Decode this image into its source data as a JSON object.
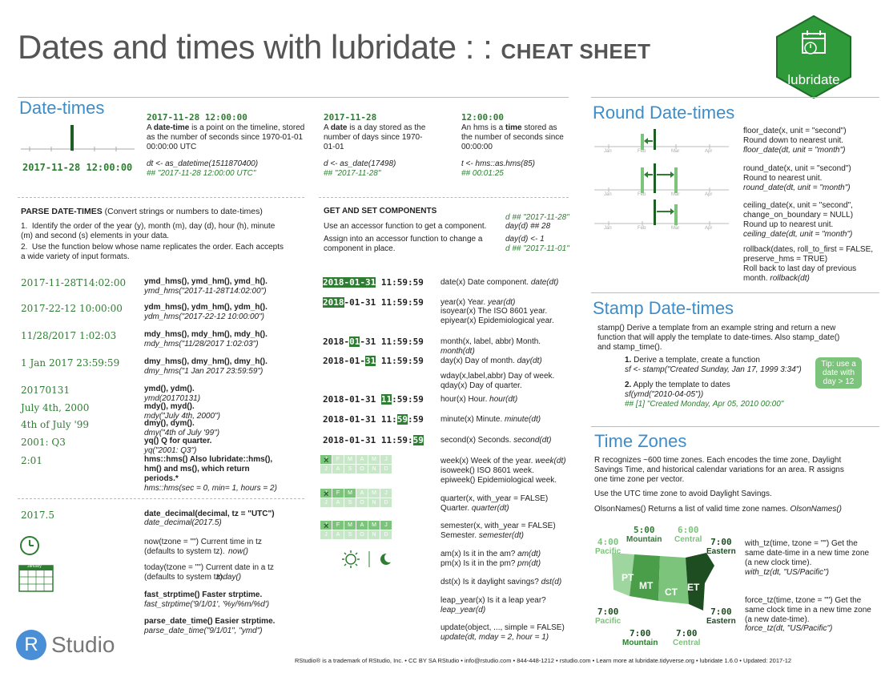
{
  "header": {
    "title_main": "Dates and times with lubridate : : ",
    "title_bold": "CHEAT SHEET",
    "logo_text": "lubridate"
  },
  "datetimes": {
    "title": "Date-times",
    "ex_datetime": "2017-11-28 12:00:00",
    "ex_datetime_big": "2017-11-28 12:00:00",
    "datetime_desc_pre": "A ",
    "datetime_desc_bold": "date-time",
    "datetime_desc_post": " is a point on the timeline, stored as the number of seconds since 1970-01-01 00:00:00 UTC",
    "datetime_code": "dt <- as_datetime(1511870400)",
    "datetime_out": "## \"2017-11-28 12:00:00 UTC\"",
    "ex_date": "2017-11-28",
    "date_desc_pre": "A ",
    "date_desc_bold": "date",
    "date_desc_post": " is a day stored as the number of days since 1970-01-01",
    "date_code": "d <- as_date(17498)",
    "date_out": "## \"2017-11-28\"",
    "ex_time": "12:00:00",
    "time_desc_pre": "An hms is a ",
    "time_desc_bold": "time",
    "time_desc_post": " stored as the number of seconds since 00:00:00",
    "time_code": "t <- hms::as.hms(85)",
    "time_out": "## 00:01:25"
  },
  "parse": {
    "heading_bold": "PARSE DATE-TIMES",
    "heading_rest": " (Convert strings or numbers to date-times)",
    "step1": "Identify the order of the year (y), month (m), day (d), hour (h), minute (m) and second (s) elements in your data.",
    "step2": "Use the function below whose name replicates the order. Each accepts a wide variety of input formats.",
    "rows": [
      {
        "ex": "2017-11-28T14:02:00",
        "fn": "ymd_hms(), ymd_hm(), ymd_h().",
        "code": "ymd_hms(\"2017-11-28T14:02:00\")"
      },
      {
        "ex": "2017-22-12 10:00:00",
        "fn": "ydm_hms(), ydm_hm(), ydm_h().",
        "code": "ydm_hms(\"2017-22-12 10:00:00\")"
      },
      {
        "ex": "11/28/2017 1:02:03",
        "fn": "mdy_hms(), mdy_hm(), mdy_h().",
        "code": "mdy_hms(\"11/28/2017 1:02:03\")"
      },
      {
        "ex": "1 Jan 2017 23:59:59",
        "fn": "dmy_hms(), dmy_hm(), dmy_h().",
        "code": "dmy_hms(\"1 Jan 2017 23:59:59\")"
      },
      {
        "ex": "20170131",
        "fn": "ymd(), ydm().",
        "code": "ymd(20170131)"
      },
      {
        "ex": "July 4th, 2000",
        "fn": "mdy(), myd().",
        "code": "mdy(\"July 4th, 2000\")"
      },
      {
        "ex": "4th of July '99",
        "fn": "dmy(), dym().",
        "code": "dmy(\"4th of July '99\")"
      },
      {
        "ex": "2001: Q3",
        "fn": "yq() Q for quarter.",
        "code": "yq(\"2001: Q3\")"
      },
      {
        "ex": "2:01",
        "fn": "hms::hms() Also lubridate::hms(), hm() and ms(), which return periods.*",
        "code": "hms::hms(sec = 0, min= 1, hours = 2)"
      }
    ],
    "decimal_ex": "2017.5",
    "decimal_fn": "date_decimal(decimal, tz = \"UTC\")",
    "decimal_code": "date_decimal(2017.5)",
    "now_fn": "now(tzone = \"\") Current time in tz (defaults to system tz).",
    "now_code": "now()",
    "today_fn": "today(tzone = \"\") Current date in a tz (defaults to system tz).",
    "today_code": "today()",
    "fast_fn": "fast_strptime() Faster strptime.",
    "fast_code": "fast_strptime('9/1/01', '%y/%m/%d')",
    "parse_fn": "parse_date_time() Easier strptime.",
    "parse_code": "parse_date_time(\"9/1/01\", \"ymd\")",
    "cal_label": "January"
  },
  "getset": {
    "heading": "GET AND SET COMPONENTS",
    "code1": "d ## \"2017-11-28\"",
    "code2": "day(d) ## 28",
    "code3": "day(d) <- 1",
    "code4": "d ## \"2017-11-01\"",
    "text1": "Use an accessor function to get a component.",
    "text2": "Assign into an accessor function to change a component in place.",
    "rows": [
      {
        "pre": "",
        "hl": "2018-01-31",
        "post": " 11:59:59",
        "fn": "date(x) Date component.",
        "code": "date(dt)"
      },
      {
        "pre": "",
        "hl": "2018",
        "post": "-01-31 11:59:59",
        "fn": "year(x) Year.",
        "code": "year(dt)"
      },
      {
        "pre": "2018-",
        "hl": "01",
        "post": "-31 11:59:59",
        "fn": "month(x, label, abbr) Month.",
        "code": "month(dt)"
      },
      {
        "pre": "2018-01-",
        "hl": "31",
        "post": " 11:59:59",
        "fn": "day(x) Day of month.",
        "code": "day(dt)"
      },
      {
        "pre": "2018-01-31 ",
        "hl": "11",
        "post": ":59:59",
        "fn": "hour(x) Hour.",
        "code": "hour(dt)"
      },
      {
        "pre": "2018-01-31 11:",
        "hl": "59",
        "post": ":59",
        "fn": "minute(x) Minute.",
        "code": "minute(dt)"
      },
      {
        "pre": "2018-01-31 11:59:",
        "hl": "59",
        "post": "",
        "fn": "second(x) Seconds.",
        "code": "second(dt)"
      }
    ],
    "isoyear": "isoyear(x) The ISO 8601 year.",
    "epiyear": "epiyear(x) Epidemiological year.",
    "wday": "wday(x,label,abbr) Day of week.",
    "qday": "qday(x) Day of quarter.",
    "week": "week(x) Week of the year.",
    "week_code": "week(dt)",
    "isoweek": "isoweek() ISO 8601 week.",
    "epiweek": "epiweek() Epidemiological week.",
    "quarter": "quarter(x, with_year = FALSE)",
    "quarter2": "Quarter.",
    "quarter_code": "quarter(dt)",
    "semester": "semester(x, with_year = FALSE)",
    "semester2": "Semester.",
    "semester_code": "semester(dt)",
    "am": "am(x) Is it in the am?",
    "am_code": "am(dt)",
    "pm": "pm(x) Is it in the pm?",
    "pm_code": "pm(dt)",
    "dst": "dst(x) Is it daylight savings?",
    "dst_code": "dst(d)",
    "leap": "leap_year(x) Is it a leap year?",
    "leap_code": "leap_year(d)",
    "update": "update(object, ..., simple = FALSE)",
    "update_code": "update(dt, mday = 2, hour = 1)",
    "months_row1": [
      "J",
      "F",
      "M",
      "A",
      "M",
      "J"
    ],
    "months_row2": [
      "J",
      "A",
      "S",
      "O",
      "N",
      "D"
    ]
  },
  "round": {
    "title": "Round Date-times",
    "ticks": [
      "Jan",
      "Feb",
      "Mar",
      "Apr"
    ],
    "floor_fn": "floor_date(x, unit = \"second\")",
    "floor_desc": "Round down to nearest unit.",
    "floor_code": "floor_date(dt, unit = \"month\")",
    "round_fn": "round_date(x, unit = \"second\")",
    "round_desc": "Round to nearest unit.",
    "round_code": "round_date(dt, unit = \"month\")",
    "ceil_fn": "ceiling_date(x, unit = \"second\", change_on_boundary = NULL)",
    "ceil_desc": "Round up to nearest unit.",
    "ceil_code": "ceiling_date(dt, unit = \"month\")",
    "rollback_fn": "rollback(dates, roll_to_first = FALSE, preserve_hms = TRUE)",
    "rollback_desc": "Roll back to last day of previous month.",
    "rollback_code": "rollback(dt)"
  },
  "stamp": {
    "title": "Stamp Date-times",
    "desc": "stamp() Derive a template from an example string and return a new function that will apply the template to date-times. Also stamp_date() and stamp_time().",
    "step1": "Derive a template, create a function",
    "step1_code": "sf <- stamp(\"Created Sunday, Jan 17, 1999 3:34\")",
    "step2": "Apply the template to dates",
    "step2_code": "sf(ymd(\"2010-04-05\"))",
    "step2_out": "## [1] \"Created Monday, Apr 05, 2010 00:00\"",
    "tip": "Tip: use a date with day > 12"
  },
  "tz": {
    "title": "Time Zones",
    "desc": "R recognizes ~600 time zones. Each encodes the time zone, Daylight Savings Time, and historical calendar variations for an area. R assigns one time zone per vector.",
    "utc": "Use the UTC time zone to avoid Daylight Savings.",
    "olson_fn": "OlsonNames() Returns a list of valid time zone names.",
    "olson_code": "OlsonNames()",
    "with_tz_fn": "with_tz(time, tzone = \"\") Get the same date-time in a new time zone (a new clock time).",
    "with_tz_code": "with_tz(dt, \"US/Pacific\")",
    "force_tz_fn": "force_tz(time, tzone = \"\") Get the same clock time in a new time zone (a new date-time).",
    "force_tz_code": "force_tz(dt, \"US/Pacific\")",
    "top_labels": [
      {
        "time": "4:00",
        "zone": "Pacific"
      },
      {
        "time": "5:00",
        "zone": "Mountain"
      },
      {
        "time": "6:00",
        "zone": "Central"
      },
      {
        "time": "7:00",
        "zone": "Eastern"
      }
    ],
    "bottom_labels": [
      {
        "time": "7:00",
        "zone": "Pacific"
      },
      {
        "time": "7:00",
        "zone": "Mountain"
      },
      {
        "time": "7:00",
        "zone": "Central"
      },
      {
        "time": "7:00",
        "zone": "Eastern"
      }
    ],
    "map_labels": [
      "PT",
      "MT",
      "CT",
      "ET"
    ]
  },
  "footer": {
    "brand": "Studio",
    "brand_letter": "R",
    "text": "RStudio® is a trademark of RStudio, Inc. • CC BY SA RStudio • info@rstudio.com • 844-448-1212 • rstudio.com • Learn more at lubridate.tidyverse.org • lubridate 1.6.0 • Updated: 2017-12"
  },
  "colors": {
    "accent_blue": "#3d8dc9",
    "green": "#2e7d32",
    "light_green": "#7cc37c"
  }
}
